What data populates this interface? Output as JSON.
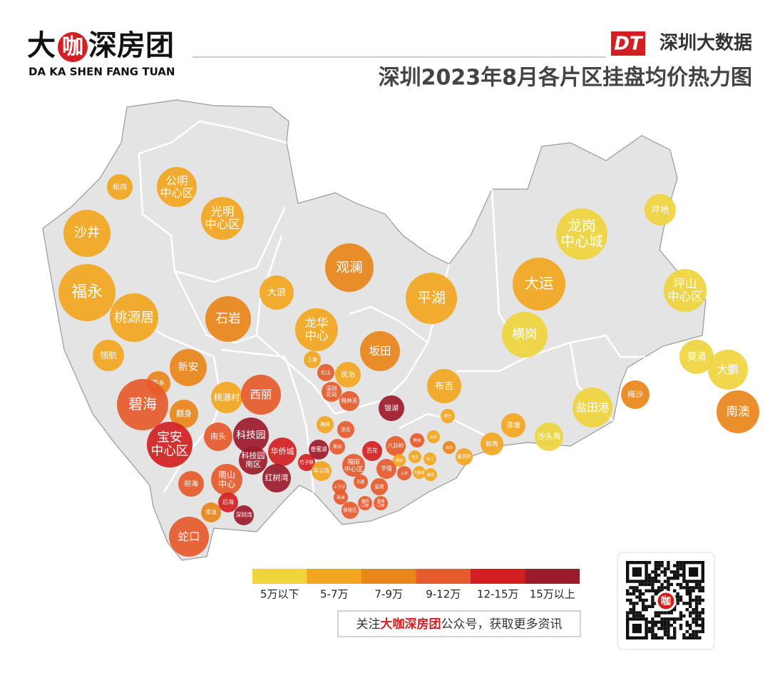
{
  "header": {
    "logo": {
      "pre": "大",
      "mark": "咖",
      "post": "深房团",
      "subtitle": "DA KA SHEN FANG TUAN"
    },
    "brand": {
      "badge": "DT",
      "name": "深圳大数据"
    },
    "title": "深圳2023年8月各片区挂盘均价热力图"
  },
  "legend": {
    "items": [
      {
        "label": "5万以下",
        "color": "#efd43c"
      },
      {
        "label": "5-7万",
        "color": "#f2a61f"
      },
      {
        "label": "7-9万",
        "color": "#e8861a"
      },
      {
        "label": "9-12万",
        "color": "#e65a2c"
      },
      {
        "label": "12-15万",
        "color": "#d31f22"
      },
      {
        "label": "15万以上",
        "color": "#9c1b2a"
      }
    ]
  },
  "areas": [
    {
      "label": "松岗",
      "color": "#f2a61f"
    },
    {
      "label": "公明\n中心区",
      "color": "#f2a61f"
    },
    {
      "label": "光明\n中心区",
      "color": "#f2a61f"
    },
    {
      "label": "沙井",
      "color": "#f2a61f"
    },
    {
      "label": "福永",
      "color": "#f2a61f"
    },
    {
      "label": "桃源居",
      "color": "#f2a61f"
    },
    {
      "label": "领航",
      "color": "#f2a61f"
    },
    {
      "label": "新安",
      "color": "#e8861a"
    },
    {
      "label": "西乡",
      "color": "#e8861a"
    },
    {
      "label": "碧海",
      "color": "#e65a2c"
    },
    {
      "label": "翻身",
      "color": "#e8861a"
    },
    {
      "label": "宝安\n中心区",
      "color": "#d31f22"
    },
    {
      "label": "南头",
      "color": "#e65a2c"
    },
    {
      "label": "前海",
      "color": "#e65a2c"
    },
    {
      "label": "南山\n中心",
      "color": "#e65a2c"
    },
    {
      "label": "后海",
      "color": "#d31f22"
    },
    {
      "label": "南油",
      "color": "#e8861a"
    },
    {
      "label": "深圳湾",
      "color": "#9c1b2a"
    },
    {
      "label": "蛇口",
      "color": "#e65a2c"
    },
    {
      "label": "石岩",
      "color": "#e8861a"
    },
    {
      "label": "大浪",
      "color": "#f2a61f"
    },
    {
      "label": "观澜",
      "color": "#e8861a"
    },
    {
      "label": "龙华\n中心",
      "color": "#f2a61f"
    },
    {
      "label": "上塘",
      "color": "#f2a61f"
    },
    {
      "label": "红山",
      "color": "#e65a2c"
    },
    {
      "label": "民治",
      "color": "#f2a61f"
    },
    {
      "label": "深圳\n北站",
      "color": "#e65a2c"
    },
    {
      "label": "梅林关",
      "color": "#e65a2c"
    },
    {
      "label": "桃源村",
      "color": "#f2a61f"
    },
    {
      "label": "西丽",
      "color": "#e65a2c"
    },
    {
      "label": "科技园",
      "color": "#9c1b2a"
    },
    {
      "label": "科技园\n南区",
      "color": "#9c1b2a"
    },
    {
      "label": "华侨城",
      "color": "#d31f22"
    },
    {
      "label": "红树湾",
      "color": "#9c1b2a"
    },
    {
      "label": "平湖",
      "color": "#f2a61f"
    },
    {
      "label": "坂田",
      "color": "#e8861a"
    },
    {
      "label": "布吉",
      "color": "#f2a61f"
    },
    {
      "label": "龙岗\n中心城",
      "color": "#efd43c"
    },
    {
      "label": "坪地",
      "color": "#efd43c"
    },
    {
      "label": "大运",
      "color": "#f2a61f"
    },
    {
      "label": "坪山\n中心区",
      "color": "#efd43c"
    },
    {
      "label": "横岗",
      "color": "#efd43c"
    },
    {
      "label": "葵涌",
      "color": "#efd43c"
    },
    {
      "label": "大鹏",
      "color": "#efd43c"
    },
    {
      "label": "南澳",
      "color": "#e8861a"
    },
    {
      "label": "盐田港",
      "color": "#efd43c"
    },
    {
      "label": "梅沙",
      "color": "#e8861a"
    },
    {
      "label": "莲塘",
      "color": "#f2a61f"
    },
    {
      "label": "沙头角",
      "color": "#efd43c"
    },
    {
      "label": "新秀",
      "color": "#f2a61f"
    },
    {
      "label": "梅林",
      "color": "#f2a61f"
    },
    {
      "label": "莲花",
      "color": "#e65a2c"
    },
    {
      "label": "香蜜湖",
      "color": "#9c1b2a"
    },
    {
      "label": "景田",
      "color": "#e65a2c"
    },
    {
      "label": "竹子林",
      "color": "#d31f22"
    },
    {
      "label": "车公庙",
      "color": "#f2a61f"
    },
    {
      "label": "福田\n中心区",
      "color": "#e65a2c"
    },
    {
      "label": "百花",
      "color": "#d31f22"
    },
    {
      "label": "八卦岭",
      "color": "#e65a2c"
    },
    {
      "label": "华强",
      "color": "#e65a2c"
    },
    {
      "label": "银湖",
      "color": "#9c1b2a"
    },
    {
      "label": "翠竹",
      "color": "#f2a61f"
    },
    {
      "label": "笋岗",
      "color": "#e65a2c"
    },
    {
      "label": "水贝",
      "color": "#f2a61f"
    },
    {
      "label": "东门",
      "color": "#f2a61f"
    },
    {
      "label": "地王",
      "color": "#f2a61f"
    },
    {
      "label": "国贸",
      "color": "#f2a61f"
    },
    {
      "label": "上步",
      "color": "#e65a2c"
    },
    {
      "label": "万象城",
      "color": "#f2a61f"
    },
    {
      "label": "田贝",
      "color": "#e8861a"
    },
    {
      "label": "黄贝岭",
      "color": "#f2a61f"
    },
    {
      "label": "春风",
      "color": "#f2a61f"
    },
    {
      "label": "上下沙",
      "color": "#e65a2c"
    },
    {
      "label": "石厦",
      "color": "#e65a2c"
    },
    {
      "label": "新洲",
      "color": "#e65a2c"
    },
    {
      "label": "皇岗",
      "color": "#e65a2c"
    },
    {
      "label": "福田\n口岸",
      "color": "#e65a2c"
    },
    {
      "label": "保税区",
      "color": "#e65a2c"
    },
    {
      "label": "皇岗\n口岸",
      "color": "#e65a2c"
    }
  ],
  "footer": {
    "pre": "关注",
    "brand": "大咖深房团",
    "post": "公众号，获取更多资讯"
  },
  "qr": {
    "mark": "咖"
  }
}
